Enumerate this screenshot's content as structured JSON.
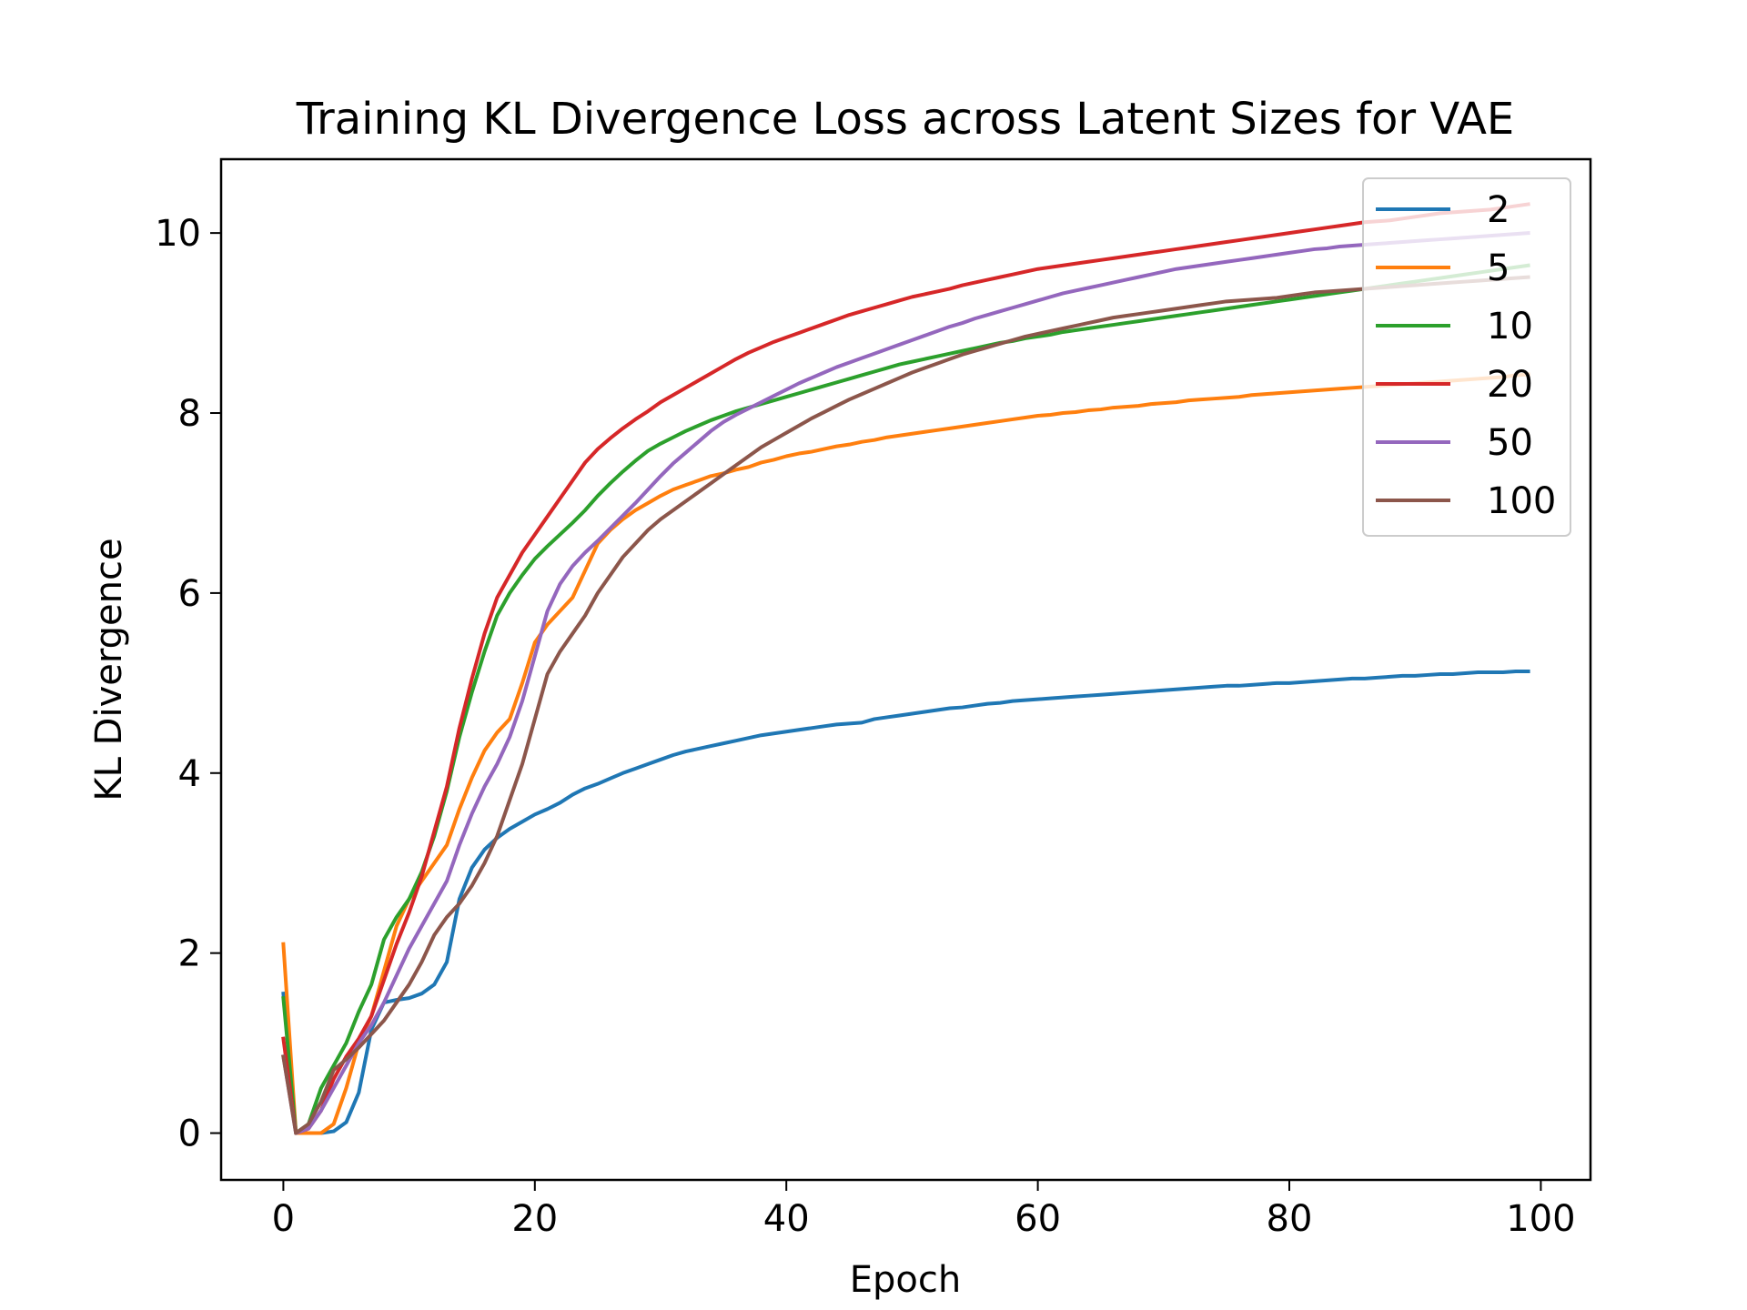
{
  "chart_data": {
    "type": "line",
    "title": "Training KL Divergence Loss across Latent Sizes for VAE",
    "xlabel": "Epoch",
    "ylabel": "KL Divergence",
    "xlim": [
      -4.95,
      103.95
    ],
    "ylim": [
      -0.52,
      10.82
    ],
    "xticks": [
      0,
      20,
      40,
      60,
      80,
      100
    ],
    "yticks": [
      0,
      2,
      4,
      6,
      8,
      10
    ],
    "grid": false,
    "legend_position": "upper right",
    "epochs_start": 0,
    "epochs_end": 99,
    "series": [
      {
        "name": "2",
        "color": "#1f77b4",
        "values": [
          1.55,
          0.0,
          0.0,
          0.0,
          0.02,
          0.12,
          0.45,
          1.15,
          1.45,
          1.48,
          1.5,
          1.55,
          1.65,
          1.9,
          2.6,
          2.95,
          3.15,
          3.28,
          3.38,
          3.46,
          3.54,
          3.6,
          3.67,
          3.76,
          3.83,
          3.88,
          3.94,
          4.0,
          4.05,
          4.1,
          4.15,
          4.2,
          4.24,
          4.27,
          4.3,
          4.33,
          4.36,
          4.39,
          4.42,
          4.44,
          4.46,
          4.48,
          4.5,
          4.52,
          4.54,
          4.55,
          4.56,
          4.6,
          4.62,
          4.64,
          4.66,
          4.68,
          4.7,
          4.72,
          4.73,
          4.75,
          4.77,
          4.78,
          4.8,
          4.81,
          4.82,
          4.83,
          4.84,
          4.85,
          4.86,
          4.87,
          4.88,
          4.89,
          4.9,
          4.91,
          4.92,
          4.93,
          4.94,
          4.95,
          4.96,
          4.97,
          4.97,
          4.98,
          4.99,
          5.0,
          5.0,
          5.01,
          5.02,
          5.03,
          5.04,
          5.05,
          5.05,
          5.06,
          5.07,
          5.08,
          5.08,
          5.09,
          5.1,
          5.1,
          5.11,
          5.12,
          5.12,
          5.12,
          5.13,
          5.13
        ]
      },
      {
        "name": "5",
        "color": "#ff7f0e",
        "values": [
          2.1,
          0.0,
          0.0,
          0.0,
          0.1,
          0.5,
          1.0,
          1.3,
          1.8,
          2.3,
          2.6,
          2.8,
          3.0,
          3.2,
          3.6,
          3.95,
          4.25,
          4.45,
          4.6,
          5.0,
          5.45,
          5.65,
          5.8,
          5.95,
          6.25,
          6.55,
          6.7,
          6.82,
          6.92,
          7.0,
          7.08,
          7.15,
          7.2,
          7.25,
          7.3,
          7.33,
          7.37,
          7.4,
          7.45,
          7.48,
          7.52,
          7.55,
          7.57,
          7.6,
          7.63,
          7.65,
          7.68,
          7.7,
          7.73,
          7.75,
          7.77,
          7.79,
          7.81,
          7.83,
          7.85,
          7.87,
          7.89,
          7.91,
          7.93,
          7.95,
          7.97,
          7.98,
          8.0,
          8.01,
          8.03,
          8.04,
          8.06,
          8.07,
          8.08,
          8.1,
          8.11,
          8.12,
          8.14,
          8.15,
          8.16,
          8.17,
          8.18,
          8.2,
          8.21,
          8.22,
          8.23,
          8.24,
          8.25,
          8.26,
          8.27,
          8.28,
          8.29,
          8.3,
          8.31,
          8.32,
          8.33,
          8.34,
          8.35,
          8.36,
          8.37,
          8.38,
          8.39,
          8.4,
          8.42,
          8.43
        ]
      },
      {
        "name": "10",
        "color": "#2ca02c",
        "values": [
          1.5,
          0.0,
          0.1,
          0.5,
          0.75,
          1.0,
          1.35,
          1.65,
          2.15,
          2.4,
          2.6,
          2.9,
          3.3,
          3.8,
          4.4,
          4.9,
          5.35,
          5.75,
          6.0,
          6.2,
          6.38,
          6.52,
          6.65,
          6.78,
          6.92,
          7.08,
          7.22,
          7.35,
          7.47,
          7.58,
          7.66,
          7.73,
          7.8,
          7.86,
          7.92,
          7.97,
          8.02,
          8.06,
          8.1,
          8.14,
          8.18,
          8.22,
          8.26,
          8.3,
          8.34,
          8.38,
          8.42,
          8.46,
          8.5,
          8.54,
          8.57,
          8.6,
          8.63,
          8.66,
          8.69,
          8.72,
          8.75,
          8.78,
          8.8,
          8.83,
          8.85,
          8.87,
          8.9,
          8.92,
          8.94,
          8.96,
          8.98,
          9.0,
          9.02,
          9.04,
          9.06,
          9.08,
          9.1,
          9.12,
          9.14,
          9.16,
          9.18,
          9.2,
          9.22,
          9.24,
          9.26,
          9.28,
          9.3,
          9.32,
          9.34,
          9.36,
          9.38,
          9.4,
          9.42,
          9.44,
          9.46,
          9.48,
          9.5,
          9.52,
          9.54,
          9.56,
          9.58,
          9.6,
          9.62,
          9.64
        ]
      },
      {
        "name": "20",
        "color": "#d62728",
        "values": [
          1.05,
          0.0,
          0.05,
          0.25,
          0.6,
          0.85,
          1.05,
          1.3,
          1.7,
          2.1,
          2.45,
          2.85,
          3.35,
          3.85,
          4.5,
          5.05,
          5.55,
          5.95,
          6.2,
          6.45,
          6.65,
          6.85,
          7.05,
          7.25,
          7.45,
          7.6,
          7.72,
          7.83,
          7.93,
          8.02,
          8.12,
          8.2,
          8.28,
          8.36,
          8.44,
          8.52,
          8.6,
          8.67,
          8.73,
          8.79,
          8.84,
          8.89,
          8.94,
          8.99,
          9.04,
          9.09,
          9.13,
          9.17,
          9.21,
          9.25,
          9.29,
          9.32,
          9.35,
          9.38,
          9.42,
          9.45,
          9.48,
          9.51,
          9.54,
          9.57,
          9.6,
          9.62,
          9.64,
          9.66,
          9.68,
          9.7,
          9.72,
          9.74,
          9.76,
          9.78,
          9.8,
          9.82,
          9.84,
          9.86,
          9.88,
          9.9,
          9.92,
          9.94,
          9.96,
          9.98,
          10.0,
          10.02,
          10.04,
          10.06,
          10.08,
          10.1,
          10.12,
          10.13,
          10.14,
          10.16,
          10.18,
          10.2,
          10.22,
          10.23,
          10.24,
          10.25,
          10.26,
          10.28,
          10.3,
          10.32
        ]
      },
      {
        "name": "50",
        "color": "#9467bd",
        "values": [
          0.85,
          0.0,
          0.05,
          0.25,
          0.5,
          0.75,
          1.0,
          1.2,
          1.45,
          1.75,
          2.05,
          2.3,
          2.55,
          2.8,
          3.2,
          3.55,
          3.85,
          4.1,
          4.4,
          4.8,
          5.3,
          5.8,
          6.1,
          6.3,
          6.45,
          6.58,
          6.72,
          6.86,
          7.0,
          7.15,
          7.3,
          7.44,
          7.56,
          7.68,
          7.8,
          7.9,
          7.98,
          8.05,
          8.12,
          8.19,
          8.26,
          8.33,
          8.39,
          8.45,
          8.51,
          8.56,
          8.61,
          8.66,
          8.71,
          8.76,
          8.81,
          8.86,
          8.91,
          8.96,
          9.0,
          9.05,
          9.09,
          9.13,
          9.17,
          9.21,
          9.25,
          9.29,
          9.33,
          9.36,
          9.39,
          9.42,
          9.45,
          9.48,
          9.51,
          9.54,
          9.57,
          9.6,
          9.62,
          9.64,
          9.66,
          9.68,
          9.7,
          9.72,
          9.74,
          9.76,
          9.78,
          9.8,
          9.82,
          9.83,
          9.85,
          9.86,
          9.87,
          9.88,
          9.89,
          9.9,
          9.91,
          9.92,
          9.93,
          9.94,
          9.95,
          9.96,
          9.97,
          9.98,
          9.99,
          10.0
        ]
      },
      {
        "name": "100",
        "color": "#8c564b",
        "values": [
          0.85,
          0.0,
          0.1,
          0.35,
          0.7,
          0.82,
          0.95,
          1.1,
          1.25,
          1.45,
          1.65,
          1.9,
          2.2,
          2.4,
          2.55,
          2.75,
          3.0,
          3.3,
          3.7,
          4.1,
          4.6,
          5.1,
          5.35,
          5.55,
          5.75,
          6.0,
          6.2,
          6.4,
          6.55,
          6.7,
          6.82,
          6.92,
          7.02,
          7.12,
          7.22,
          7.32,
          7.42,
          7.52,
          7.62,
          7.7,
          7.78,
          7.86,
          7.94,
          8.01,
          8.08,
          8.15,
          8.21,
          8.27,
          8.33,
          8.39,
          8.45,
          8.5,
          8.55,
          8.6,
          8.65,
          8.69,
          8.73,
          8.77,
          8.81,
          8.85,
          8.88,
          8.91,
          8.94,
          8.97,
          9.0,
          9.03,
          9.06,
          9.08,
          9.1,
          9.12,
          9.14,
          9.16,
          9.18,
          9.2,
          9.22,
          9.24,
          9.25,
          9.26,
          9.27,
          9.28,
          9.3,
          9.32,
          9.34,
          9.35,
          9.36,
          9.37,
          9.38,
          9.39,
          9.4,
          9.41,
          9.42,
          9.43,
          9.44,
          9.45,
          9.46,
          9.47,
          9.48,
          9.49,
          9.5,
          9.51
        ]
      }
    ]
  }
}
